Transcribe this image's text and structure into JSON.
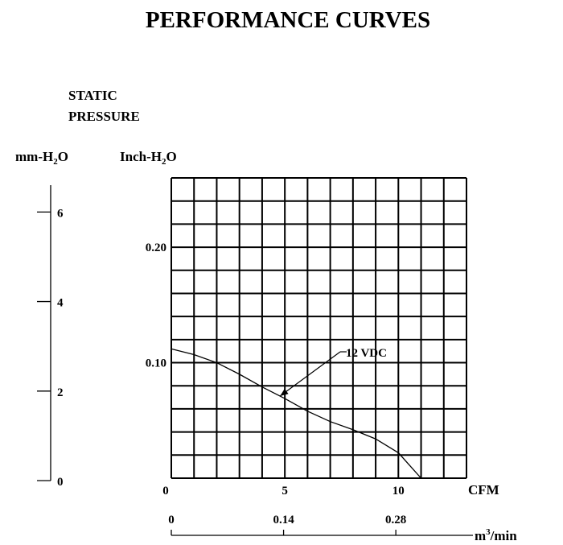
{
  "chart_data": {
    "type": "line",
    "title": "PERFORMANCE CURVES",
    "y_title": [
      "STATIC",
      "PRESSURE"
    ],
    "y_unit_left": {
      "main": "mm-H",
      "sub": "2",
      "tail": "O"
    },
    "y_unit_right": {
      "main": "Inch-H",
      "sub": "2",
      "tail": "O"
    },
    "x_unit_main": "CFM",
    "x_unit_secondary": {
      "main": "m",
      "sup": "3",
      "tail": "/min"
    },
    "x_range": [
      0,
      13
    ],
    "y_range": [
      0,
      0.26
    ],
    "mm_range": [
      0,
      6.6
    ],
    "grid": true,
    "x_ticks": [
      "0",
      "5",
      "10"
    ],
    "x_tick_values": [
      0,
      5,
      10
    ],
    "x2_ticks": [
      "0",
      "0.14",
      "0.28"
    ],
    "x2_tick_values": [
      0,
      0.14,
      0.28
    ],
    "y_ticks": [
      "0.10",
      "0.20"
    ],
    "y_tick_values": [
      0.1,
      0.2
    ],
    "mm_ticks": [
      "0",
      "2",
      "4",
      "6"
    ],
    "mm_tick_values": [
      0,
      2,
      4,
      6
    ],
    "series": [
      {
        "name": "12 VDC",
        "x": [
          0,
          1.0,
          2.0,
          3.0,
          4.0,
          5.0,
          6.0,
          7.0,
          8.0,
          9.0,
          10.0,
          11.0
        ],
        "y": [
          0.112,
          0.107,
          0.1,
          0.09,
          0.079,
          0.069,
          0.058,
          0.049,
          0.042,
          0.034,
          0.022,
          0.0
        ]
      }
    ],
    "annotation": {
      "text": "12 VDC",
      "series": "12 VDC",
      "at_x": 5
    }
  }
}
